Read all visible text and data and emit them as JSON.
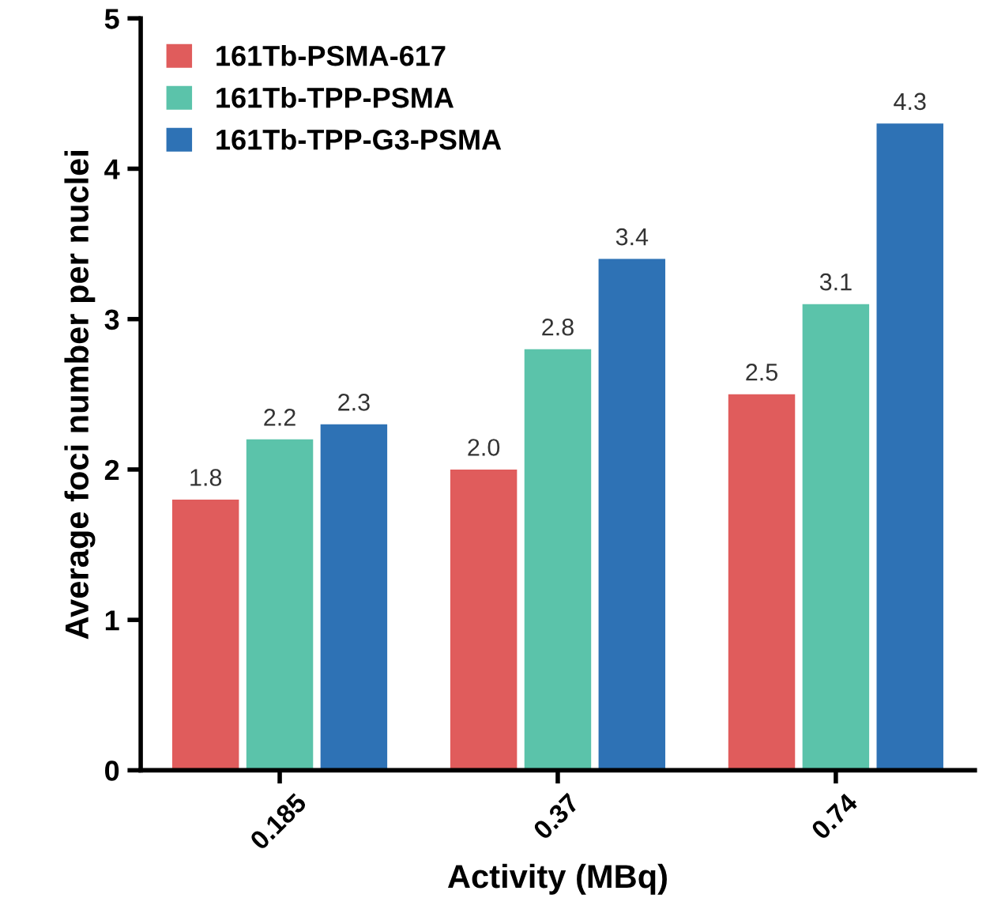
{
  "chart_data": {
    "type": "bar",
    "xlabel": "Activity (MBq)",
    "ylabel": "Average foci number per nuclei",
    "categories": [
      "0.185",
      "0.37",
      "0.74"
    ],
    "series": [
      {
        "name": "161Tb-PSMA-617",
        "color": "#e05c5c",
        "values": [
          1.8,
          2.0,
          2.5
        ],
        "value_labels": [
          "1.8",
          "2.0",
          "2.5"
        ]
      },
      {
        "name": "161Tb-TPP-PSMA",
        "color": "#5bc3aa",
        "values": [
          2.2,
          2.8,
          3.1
        ],
        "value_labels": [
          "2.2",
          "2.8",
          "3.1"
        ]
      },
      {
        "name": "161Tb-TPP-G3-PSMA",
        "color": "#2e72b5",
        "values": [
          2.3,
          3.4,
          4.3
        ],
        "value_labels": [
          "2.3",
          "3.4",
          "4.3"
        ]
      }
    ],
    "ylim": [
      0,
      5
    ],
    "yticks": [
      0,
      1,
      2,
      3,
      4,
      5
    ],
    "legend": "top left",
    "grid": false
  }
}
